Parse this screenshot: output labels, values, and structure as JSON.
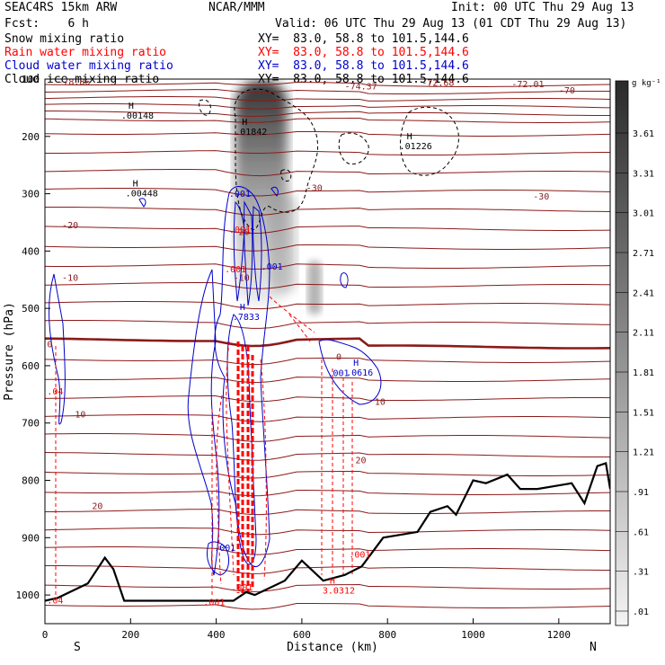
{
  "header": {
    "model": "SEAC4RS 15km ARW",
    "org": "NCAR/MMM",
    "init": "Init: 00 UTC Thu 29 Aug 13",
    "fcst": "Fcst:    6 h",
    "valid": "Valid: 06 UTC Thu 29 Aug 13 (01 CDT Thu 29 Aug 13)"
  },
  "fields": [
    {
      "name": "Snow mixing ratio",
      "xy": "XY=  83.0, 58.8 to 101.5,144.6",
      "color": "#000000"
    },
    {
      "name": "Rain water mixing ratio",
      "xy": "XY=  83.0, 58.8 to 101.5,144.6",
      "color": "#ff0000"
    },
    {
      "name": "Cloud water mixing ratio",
      "xy": "XY=  83.0, 58.8 to 101.5,144.6",
      "color": "#0000cc"
    },
    {
      "name": "Cloud ice mixing ratio",
      "xy": "XY=  83.0, 58.8 to 101.5,144.6",
      "color": "#000000"
    }
  ],
  "colorbar": {
    "unit": "g kg⁻¹",
    "labels": [
      "3.61",
      "3.31",
      "3.01",
      "2.71",
      "2.41",
      "2.11",
      "1.81",
      "1.51",
      "1.21",
      ".91",
      ".61",
      ".31",
      ".01"
    ]
  },
  "chart_data": {
    "type": "cross-section",
    "xlabel": "Distance (km)",
    "ylabel": "Pressure (hPa)",
    "xlim": [
      0,
      1320
    ],
    "ylim": [
      1050,
      100
    ],
    "xticks": [
      0,
      200,
      400,
      600,
      800,
      1000,
      1200
    ],
    "yticks": [
      100,
      200,
      300,
      400,
      500,
      600,
      700,
      800,
      900,
      1000
    ],
    "end_labels": {
      "left": "S",
      "right": "N"
    },
    "terrain": [
      [
        0,
        1010
      ],
      [
        30,
        1005
      ],
      [
        100,
        980
      ],
      [
        140,
        935
      ],
      [
        160,
        955
      ],
      [
        185,
        1010
      ],
      [
        200,
        1010
      ],
      [
        440,
        1010
      ],
      [
        470,
        995
      ],
      [
        490,
        1000
      ],
      [
        560,
        975
      ],
      [
        600,
        940
      ],
      [
        650,
        975
      ],
      [
        700,
        965
      ],
      [
        740,
        950
      ],
      [
        790,
        900
      ],
      [
        870,
        890
      ],
      [
        900,
        855
      ],
      [
        940,
        845
      ],
      [
        960,
        860
      ],
      [
        1000,
        800
      ],
      [
        1030,
        805
      ],
      [
        1080,
        790
      ],
      [
        1110,
        815
      ],
      [
        1150,
        815
      ],
      [
        1190,
        810
      ],
      [
        1230,
        805
      ],
      [
        1260,
        840
      ],
      [
        1290,
        775
      ],
      [
        1310,
        770
      ],
      [
        1320,
        815
      ]
    ],
    "temperature_labels": [
      {
        "x": 30,
        "p": 110,
        "text": "-78.86"
      },
      {
        "x": 700,
        "p": 118,
        "text": "-74.37"
      },
      {
        "x": 880,
        "p": 112,
        "text": "-72.68"
      },
      {
        "x": 1090,
        "p": 114,
        "text": "-72.01"
      },
      {
        "x": 1200,
        "p": 125,
        "text": "-70"
      },
      {
        "x": 610,
        "p": 295,
        "text": "-30"
      },
      {
        "x": 1140,
        "p": 310,
        "text": "-30"
      },
      {
        "x": 40,
        "p": 360,
        "text": "-20"
      },
      {
        "x": 440,
        "p": 372,
        "text": "-20"
      },
      {
        "x": 40,
        "p": 452,
        "text": "-10"
      },
      {
        "x": 440,
        "p": 452,
        "text": "-10"
      },
      {
        "x": 5,
        "p": 568,
        "text": "0"
      },
      {
        "x": 680,
        "p": 590,
        "text": "0"
      },
      {
        "x": 70,
        "p": 690,
        "text": "10"
      },
      {
        "x": 770,
        "p": 668,
        "text": "10"
      },
      {
        "x": 725,
        "p": 770,
        "text": "20"
      },
      {
        "x": 110,
        "p": 850,
        "text": "20"
      }
    ],
    "maxima_labels": [
      {
        "x": 195,
        "p": 152,
        "mark": "H",
        "value": ".00148",
        "color": "#000000"
      },
      {
        "x": 460,
        "p": 180,
        "mark": "H",
        "value": ".01842",
        "color": "#000000"
      },
      {
        "x": 845,
        "p": 205,
        "mark": "H",
        "value": ".01226",
        "color": "#000000"
      },
      {
        "x": 205,
        "p": 287,
        "mark": "H",
        "value": ".00448",
        "color": "#000000"
      },
      {
        "x": 455,
        "p": 503,
        "mark": "H",
        "value": ".7833",
        "color": "#0000cc"
      },
      {
        "x": 720,
        "p": 600,
        "mark": "H",
        "value": ".0616",
        "color": "#0000cc"
      },
      {
        "x": 665,
        "p": 980,
        "mark": "H",
        "value": "3.0312",
        "color": "#ff0000"
      }
    ],
    "contour_labels": [
      {
        "x": 430,
        "p": 305,
        "text": ".001",
        "color": "#0000cc"
      },
      {
        "x": 505,
        "p": 432,
        "text": ".001",
        "color": "#0000cc"
      },
      {
        "x": 660,
        "p": 618,
        "text": ".001",
        "color": "#0000cc"
      },
      {
        "x": 395,
        "p": 923,
        "text": ".001",
        "color": "#0000cc"
      },
      {
        "x": 430,
        "p": 368,
        "text": ".001",
        "color": "#ff0000"
      },
      {
        "x": 420,
        "p": 437,
        "text": ".001",
        "color": "#ff0000"
      },
      {
        "x": 5,
        "p": 650,
        "text": ".04",
        "color": "#ff0000"
      },
      {
        "x": 5,
        "p": 1015,
        "text": ".04",
        "color": "#ff0000"
      },
      {
        "x": 370,
        "p": 1018,
        "text": ".001",
        "color": "#ff0000"
      },
      {
        "x": 435,
        "p": 992,
        "text": ".001",
        "color": "#ff0000"
      },
      {
        "x": 710,
        "p": 935,
        "text": ".001",
        "color": "#ff0000"
      }
    ]
  }
}
